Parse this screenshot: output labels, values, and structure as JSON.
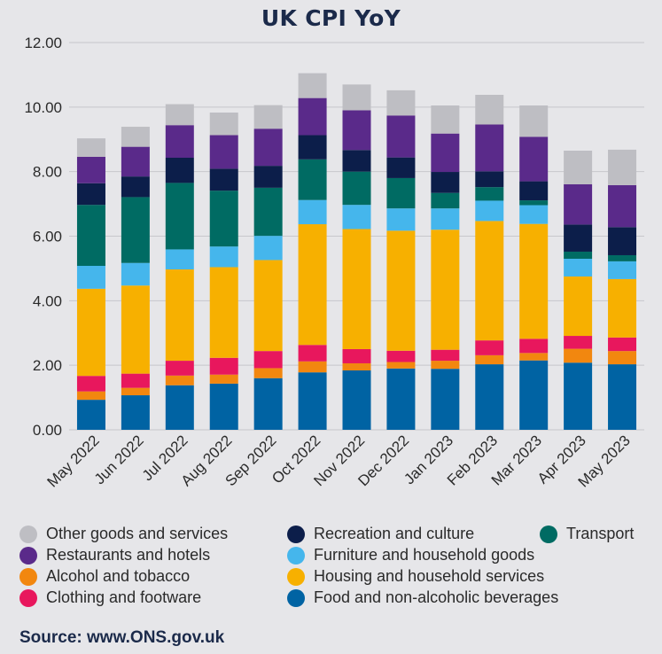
{
  "chart_data": {
    "type": "bar",
    "stacked": true,
    "title": "UK CPI YoY",
    "xlabel": "",
    "ylabel": "",
    "ylim": [
      0,
      12
    ],
    "yticks": [
      "0.00",
      "2.00",
      "4.00",
      "6.00",
      "8.00",
      "10.00",
      "12.00"
    ],
    "grid": true,
    "categories": [
      "May 2022",
      "Jun 2022",
      "Jul 2022",
      "Aug 2022",
      "Sep 2022",
      "Oct 2022",
      "Nov 2022",
      "Dec 2022",
      "Jan 2023",
      "Feb 2023",
      "Mar 2023",
      "Apr 2023",
      "May 2023"
    ],
    "series": [
      {
        "name": "Food and non-alcoholic beverages",
        "color": "#0063a3",
        "values": [
          0.93,
          1.07,
          1.38,
          1.43,
          1.6,
          1.78,
          1.84,
          1.9,
          1.89,
          2.03,
          2.15,
          2.08,
          2.03
        ]
      },
      {
        "name": "Alcohol and tobacco",
        "color": "#f2870f",
        "values": [
          0.26,
          0.23,
          0.3,
          0.28,
          0.31,
          0.34,
          0.22,
          0.2,
          0.25,
          0.28,
          0.23,
          0.43,
          0.41
        ]
      },
      {
        "name": "Clothing and footware",
        "color": "#e8175d",
        "values": [
          0.48,
          0.44,
          0.46,
          0.52,
          0.53,
          0.51,
          0.44,
          0.35,
          0.34,
          0.46,
          0.44,
          0.4,
          0.42
        ]
      },
      {
        "name": "Housing and household services",
        "color": "#f7b000",
        "values": [
          2.7,
          2.73,
          2.83,
          2.81,
          2.82,
          3.74,
          3.72,
          3.72,
          3.72,
          3.7,
          3.56,
          1.84,
          1.81
        ]
      },
      {
        "name": "Furniture and household goods",
        "color": "#45b6ec",
        "values": [
          0.71,
          0.7,
          0.62,
          0.64,
          0.75,
          0.75,
          0.75,
          0.69,
          0.66,
          0.63,
          0.58,
          0.55,
          0.55
        ]
      },
      {
        "name": "Transport",
        "color": "#006b63",
        "values": [
          1.89,
          2.04,
          2.06,
          1.73,
          1.49,
          1.26,
          1.03,
          0.94,
          0.48,
          0.42,
          0.15,
          0.22,
          0.19
        ]
      },
      {
        "name": "Recreation and culture",
        "color": "#0c1e4a",
        "values": [
          0.67,
          0.64,
          0.78,
          0.68,
          0.68,
          0.75,
          0.67,
          0.64,
          0.65,
          0.49,
          0.59,
          0.84,
          0.87
        ]
      },
      {
        "name": "Restaurants and hotels",
        "color": "#5a2a8a",
        "values": [
          0.82,
          0.92,
          1.01,
          1.04,
          1.15,
          1.15,
          1.23,
          1.3,
          1.19,
          1.45,
          1.38,
          1.25,
          1.3
        ]
      },
      {
        "name": "Other goods and services",
        "color": "#bebec3",
        "values": [
          0.57,
          0.62,
          0.65,
          0.7,
          0.73,
          0.77,
          0.8,
          0.78,
          0.87,
          0.92,
          0.97,
          1.04,
          1.1
        ]
      }
    ],
    "legend_position": "bottom"
  },
  "legend_order": [
    "Other goods and services",
    "Recreation and culture",
    "Transport",
    "Restaurants and hotels",
    "Furniture and household goods",
    "Alcohol and tobacco",
    "Housing and household services",
    "Clothing and footware",
    "Food and non-alcoholic beverages"
  ],
  "source": "Source: www.ONS.gov.uk"
}
